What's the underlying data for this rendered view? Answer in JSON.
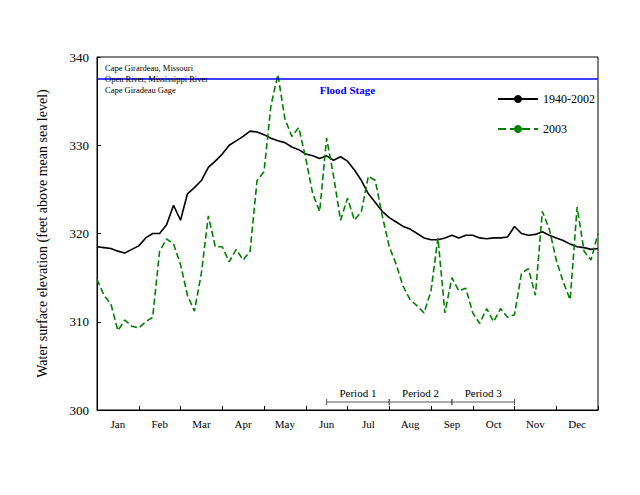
{
  "chart_data": {
    "type": "line",
    "annotations": [
      "Cape Girardeau, Missouri",
      "Open River, Mississippi River",
      "Cape Giradeau Gage"
    ],
    "y_label": "Water surface elevation (feet above mean sea level)",
    "categories": [
      null,
      null,
      null,
      "Jan",
      null,
      null,
      null,
      null,
      null,
      "Feb",
      null,
      null,
      null,
      null,
      null,
      "Mar",
      null,
      null,
      null,
      null,
      null,
      "Apr",
      null,
      null,
      null,
      null,
      null,
      "May",
      null,
      null,
      null,
      null,
      null,
      "Jun",
      null,
      null,
      null,
      null,
      null,
      "Jul",
      null,
      null,
      null,
      null,
      null,
      "Aug",
      null,
      null,
      null,
      null,
      null,
      "Sep",
      null,
      null,
      null,
      null,
      null,
      "Oct",
      null,
      null,
      null,
      null,
      null,
      "Nov",
      null,
      null,
      null,
      null,
      null,
      "Dec",
      null,
      null,
      null
    ],
    "series": [
      {
        "name": "1940-2002",
        "color": "#000000",
        "line_style": "solid",
        "values": [
          318.5,
          318.4,
          318.3,
          318.0,
          317.8,
          318.2,
          318.6,
          319.5,
          320.0,
          320.0,
          321.0,
          323.2,
          321.5,
          324.5,
          325.2,
          326.0,
          327.5,
          328.2,
          329.0,
          330.0,
          330.5,
          331.0,
          331.6,
          331.5,
          331.2,
          330.8,
          330.5,
          330.3,
          329.8,
          329.5,
          329.0,
          328.8,
          328.5,
          328.8,
          328.3,
          328.7,
          328.2,
          327.2,
          326.0,
          324.5,
          323.5,
          322.5,
          321.8,
          321.3,
          320.8,
          320.5,
          320.0,
          319.5,
          319.3,
          319.3,
          319.5,
          319.8,
          319.5,
          319.8,
          319.8,
          319.5,
          319.4,
          319.5,
          319.5,
          319.6,
          320.8,
          320.0,
          319.8,
          319.9,
          320.2,
          319.8,
          319.5,
          319.2,
          318.8,
          318.5,
          318.4,
          318.2,
          318.3
        ]
      },
      {
        "name": "2003",
        "color": "#008000",
        "line_style": "dashed",
        "values": [
          314.8,
          313.0,
          312.0,
          309.0,
          310.2,
          309.5,
          309.3,
          310.0,
          310.5,
          318.0,
          319.4,
          318.8,
          316.5,
          313.0,
          311.2,
          315.5,
          322.0,
          318.5,
          318.5,
          316.8,
          318.2,
          317.0,
          318.0,
          326.0,
          327.0,
          334.5,
          338.0,
          333.0,
          331.0,
          332.0,
          328.5,
          324.5,
          322.5,
          330.8,
          326.5,
          321.5,
          324.0,
          321.5,
          322.5,
          326.5,
          326.0,
          322.0,
          318.5,
          316.5,
          314.0,
          312.5,
          311.8,
          311.0,
          313.5,
          319.5,
          311.0,
          315.0,
          313.5,
          313.8,
          311.0,
          309.8,
          311.5,
          310.0,
          311.5,
          310.5,
          310.8,
          315.5,
          316.0,
          313.0,
          322.5,
          320.5,
          317.0,
          314.5,
          312.5,
          323.0,
          318.0,
          317.0,
          320.0
        ]
      }
    ],
    "ylim": [
      300,
      340
    ],
    "yticks": [
      300,
      310,
      320,
      330,
      340
    ],
    "grid": false,
    "legend": "upper right",
    "marker": "none",
    "flood_stage": {
      "label": "Flood Stage",
      "value": 337.5,
      "color": "#0000ff"
    },
    "periods": [
      {
        "label": "Period 1",
        "start": 33,
        "end": 42
      },
      {
        "label": "Period 2",
        "start": 42,
        "end": 51
      },
      {
        "label": "Period 3",
        "start": 51,
        "end": 60
      }
    ]
  }
}
